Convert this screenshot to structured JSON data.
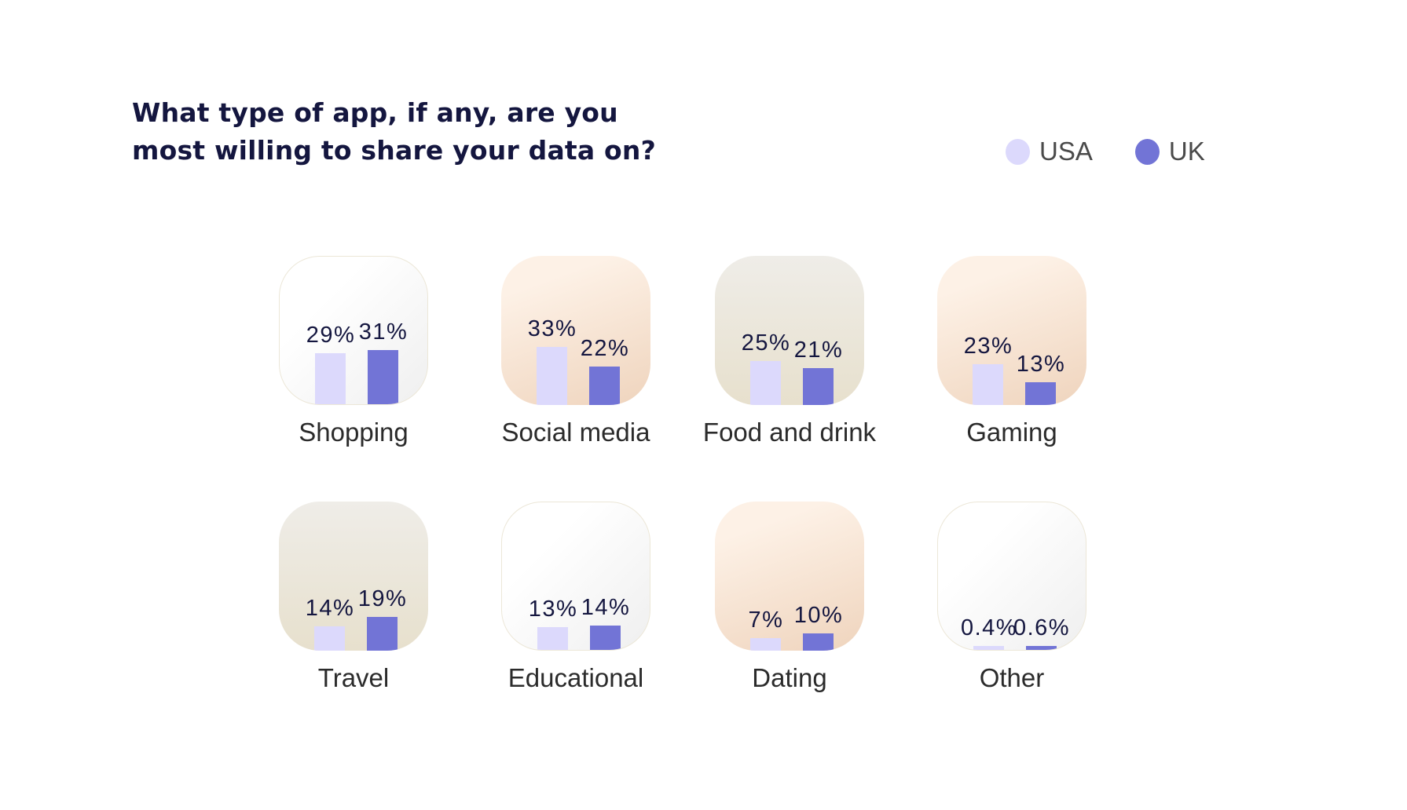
{
  "chart_data": {
    "type": "bar",
    "title": "What type of app, if any, are you most willing to share your data on?",
    "legend_position": "top-right",
    "grid": false,
    "series": [
      {
        "name": "USA",
        "color": "#dcd9fc",
        "values": [
          29,
          33,
          25,
          23,
          14,
          13,
          7,
          0.4
        ]
      },
      {
        "name": "UK",
        "color": "#7274d6",
        "values": [
          31,
          22,
          21,
          13,
          19,
          14,
          10,
          0.6
        ]
      }
    ],
    "categories": [
      "Shopping",
      "Social media",
      "Food and drink",
      "Gaming",
      "Travel",
      "Educational",
      "Dating",
      "Other"
    ],
    "labels": [
      [
        "29%",
        "31%"
      ],
      [
        "33%",
        "22%"
      ],
      [
        "25%",
        "21%"
      ],
      [
        "23%",
        "13%"
      ],
      [
        "14%",
        "19%"
      ],
      [
        "13%",
        "14%"
      ],
      [
        "7%",
        "10%"
      ],
      [
        "0.4%",
        "0.6%"
      ]
    ],
    "card_styles": [
      "white",
      "peach",
      "beige",
      "peach",
      "beige",
      "white",
      "peach",
      "white"
    ]
  }
}
